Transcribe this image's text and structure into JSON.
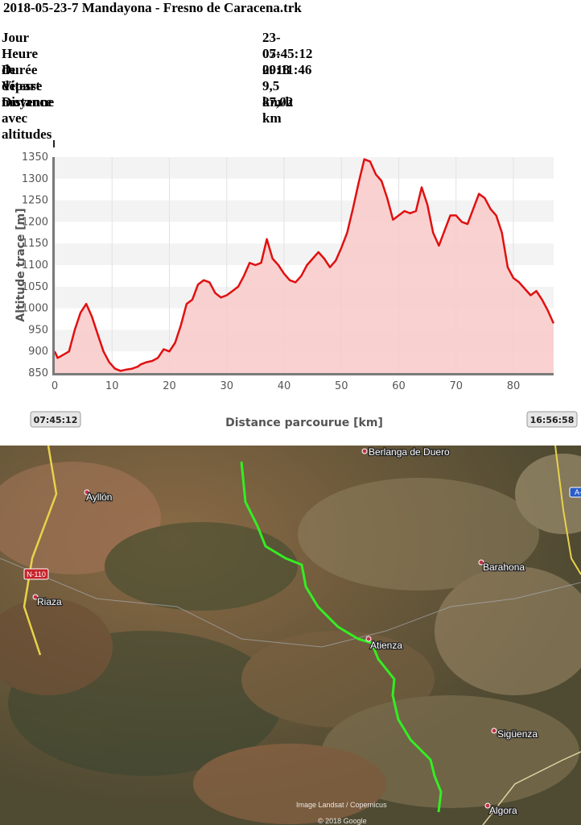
{
  "title": "2018-05-23-7 Mandayona - Fresno de Caracena.trk",
  "info": [
    {
      "label": "Jour",
      "value": "23-05-2018"
    },
    {
      "label": "Heure de départ",
      "value": "07:45:12"
    },
    {
      "label": "Durée",
      "value": "09:11:46"
    },
    {
      "label": "Vitesse moyenne",
      "value": "9,5 km/h"
    },
    {
      "label": "Distance avec altitudes",
      "value": "87,02 km"
    }
  ],
  "chart_data": {
    "type": "area",
    "xlabel": "Distance parcourue [km]",
    "ylabel": "Altitude trace [m]",
    "xlim": [
      0,
      87.02
    ],
    "ylim": [
      850,
      1350
    ],
    "xticks": [
      0,
      10,
      20,
      30,
      40,
      50,
      60,
      70,
      80
    ],
    "yticks": [
      850,
      900,
      950,
      1000,
      1050,
      1100,
      1150,
      1200,
      1250,
      1300,
      1350
    ],
    "grid": "horizontal bands and vertical lines",
    "start_time": "07:45:12",
    "end_time": "16:56:58",
    "colors": {
      "line": "#e01010",
      "fill": "#f9c9c9",
      "band": "#f3f3f3",
      "axis": "#7a7a7a"
    },
    "series": [
      {
        "x": [
          0,
          0.5,
          1.2,
          2.5,
          3.5,
          4.5,
          5.5,
          6.5,
          7.5,
          8.5,
          9.5,
          10.5,
          11.5,
          12.5,
          13.5,
          14.5,
          15,
          16,
          17,
          18,
          19,
          20,
          21,
          22,
          23,
          24,
          25,
          26,
          27,
          28,
          29,
          30,
          31,
          32,
          33,
          34,
          35,
          36,
          37,
          38,
          39,
          40,
          41,
          42,
          43,
          44,
          45,
          46,
          47,
          48,
          49,
          50,
          51,
          52,
          53,
          54,
          55,
          56,
          57,
          58,
          59,
          60,
          61,
          62,
          63,
          64,
          65,
          66,
          67,
          68,
          69,
          70,
          71,
          72,
          73,
          74,
          75,
          76,
          77,
          78,
          79,
          80,
          81,
          82,
          83,
          84,
          85,
          86,
          87
        ],
        "y": [
          900,
          885,
          890,
          900,
          950,
          990,
          1010,
          980,
          940,
          900,
          875,
          860,
          855,
          858,
          860,
          865,
          870,
          875,
          878,
          885,
          905,
          900,
          920,
          960,
          1010,
          1020,
          1055,
          1065,
          1060,
          1035,
          1025,
          1030,
          1040,
          1050,
          1075,
          1105,
          1100,
          1105,
          1160,
          1115,
          1100,
          1080,
          1065,
          1060,
          1075,
          1100,
          1115,
          1130,
          1115,
          1095,
          1110,
          1140,
          1175,
          1230,
          1290,
          1345,
          1340,
          1310,
          1295,
          1255,
          1205,
          1215,
          1225,
          1220,
          1225,
          1280,
          1240,
          1175,
          1145,
          1180,
          1215,
          1215,
          1200,
          1195,
          1230,
          1265,
          1255,
          1230,
          1215,
          1175,
          1095,
          1070,
          1060,
          1045,
          1030,
          1040,
          1020,
          995,
          965
        ]
      }
    ]
  },
  "map": {
    "places": [
      "Berlanga de Duero",
      "Ayllón",
      "Barahona",
      "Riaza",
      "Atienza",
      "Sigüenza",
      "Algora"
    ],
    "road_label": "N-110",
    "edge_label": "A-",
    "credit_1": "Image Landsat / Copernicus",
    "credit_2": "© 2018 Google",
    "colors": {
      "track": "#33ee22",
      "road": "#e8d24a",
      "terrain": "#6b5a3c"
    }
  }
}
